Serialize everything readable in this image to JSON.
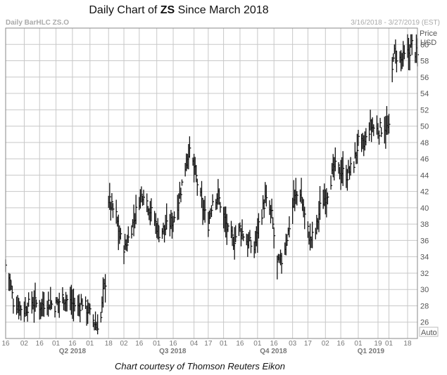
{
  "title": {
    "pre": "Daily Chart of ",
    "ticker": "ZS",
    "post": " Since March 2018"
  },
  "subtitle_left": "Daily BarHLC ZS.O",
  "subtitle_right": "3/16/2018 - 3/27/2019 (EST)",
  "price_label": "Price",
  "currency_label": "USD",
  "auto_label": "Auto",
  "credit": "Chart courtesy of Thomson Reuters Eikon",
  "chart_data": {
    "type": "bar",
    "series_type": "daily high-low-close",
    "ylim": [
      24,
      62
    ],
    "y_ticks": [
      26,
      28,
      30,
      32,
      34,
      36,
      38,
      40,
      42,
      44,
      46,
      48,
      50,
      52,
      54,
      56,
      58,
      60
    ],
    "x_range": [
      "2018-03-16",
      "2019-03-27"
    ],
    "x_ticks": [
      {
        "label": "16",
        "date": "2018-03-16"
      },
      {
        "label": "02",
        "date": "2018-04-02"
      },
      {
        "label": "16",
        "date": "2018-04-16"
      },
      {
        "label": "01",
        "date": "2018-05-01"
      },
      {
        "label": "16",
        "date": "2018-05-16"
      },
      {
        "label": "01",
        "date": "2018-06-01"
      },
      {
        "label": "18",
        "date": "2018-06-18"
      },
      {
        "label": "02",
        "date": "2018-07-02"
      },
      {
        "label": "16",
        "date": "2018-07-16"
      },
      {
        "label": "01",
        "date": "2018-08-01"
      },
      {
        "label": "16",
        "date": "2018-08-16"
      },
      {
        "label": "04",
        "date": "2018-09-04"
      },
      {
        "label": "17",
        "date": "2018-09-17"
      },
      {
        "label": "01",
        "date": "2018-10-01"
      },
      {
        "label": "16",
        "date": "2018-10-16"
      },
      {
        "label": "01",
        "date": "2018-11-01"
      },
      {
        "label": "16",
        "date": "2018-11-16"
      },
      {
        "label": "03",
        "date": "2018-12-03"
      },
      {
        "label": "17",
        "date": "2018-12-17"
      },
      {
        "label": "02",
        "date": "2019-01-02"
      },
      {
        "label": "16",
        "date": "2019-01-16"
      },
      {
        "label": "01",
        "date": "2019-02-01"
      },
      {
        "label": "19",
        "date": "2019-02-19"
      },
      {
        "label": "01",
        "date": "2019-03-01"
      },
      {
        "label": "18",
        "date": "2019-03-18"
      }
    ],
    "quarters": [
      {
        "label": "Q2 2018",
        "start": "2018-04-01",
        "end": "2018-06-30"
      },
      {
        "label": "Q3 2018",
        "start": "2018-07-01",
        "end": "2018-09-30"
      },
      {
        "label": "Q4 2018",
        "start": "2018-10-01",
        "end": "2018-12-31"
      },
      {
        "label": "Q1 2019",
        "start": "2019-01-01",
        "end": "2019-03-31"
      }
    ],
    "grid": true,
    "price_path": [
      [
        "2018-03-16",
        33.0
      ],
      [
        "2018-03-20",
        31.0
      ],
      [
        "2018-03-23",
        28.5
      ],
      [
        "2018-03-28",
        28.0
      ],
      [
        "2018-04-02",
        27.5
      ],
      [
        "2018-04-09",
        28.5
      ],
      [
        "2018-04-16",
        28.0
      ],
      [
        "2018-04-23",
        28.5
      ],
      [
        "2018-04-30",
        28.0
      ],
      [
        "2018-05-07",
        29.0
      ],
      [
        "2018-05-14",
        28.5
      ],
      [
        "2018-05-21",
        27.8
      ],
      [
        "2018-05-25",
        28.5
      ],
      [
        "2018-06-01",
        27.0
      ],
      [
        "2018-06-07",
        25.5
      ],
      [
        "2018-06-11",
        26.5
      ],
      [
        "2018-06-13",
        29.5
      ],
      [
        "2018-06-15",
        31.0
      ],
      [
        "2018-06-18",
        41.0
      ],
      [
        "2018-06-21",
        40.0
      ],
      [
        "2018-06-25",
        39.0
      ],
      [
        "2018-06-28",
        36.5
      ],
      [
        "2018-07-03",
        35.0
      ],
      [
        "2018-07-10",
        38.0
      ],
      [
        "2018-07-16",
        41.0
      ],
      [
        "2018-07-20",
        42.0
      ],
      [
        "2018-07-25",
        40.0
      ],
      [
        "2018-07-30",
        38.5
      ],
      [
        "2018-08-03",
        37.0
      ],
      [
        "2018-08-09",
        37.5
      ],
      [
        "2018-08-16",
        38.5
      ],
      [
        "2018-08-22",
        41.5
      ],
      [
        "2018-08-27",
        45.0
      ],
      [
        "2018-08-30",
        47.0
      ],
      [
        "2018-09-04",
        45.0
      ],
      [
        "2018-09-07",
        43.0
      ],
      [
        "2018-09-12",
        40.0
      ],
      [
        "2018-09-17",
        38.0
      ],
      [
        "2018-09-21",
        41.0
      ],
      [
        "2018-09-26",
        41.5
      ],
      [
        "2018-10-01",
        39.0
      ],
      [
        "2018-10-05",
        37.0
      ],
      [
        "2018-10-10",
        36.0
      ],
      [
        "2018-10-16",
        37.5
      ],
      [
        "2018-10-22",
        36.0
      ],
      [
        "2018-10-29",
        35.0
      ],
      [
        "2018-11-02",
        38.0
      ],
      [
        "2018-11-08",
        41.0
      ],
      [
        "2018-11-14",
        39.0
      ],
      [
        "2018-11-19",
        33.0
      ],
      [
        "2018-11-23",
        33.5
      ],
      [
        "2018-11-29",
        37.0
      ],
      [
        "2018-12-04",
        41.0
      ],
      [
        "2018-12-10",
        42.0
      ],
      [
        "2018-12-14",
        39.0
      ],
      [
        "2018-12-19",
        36.0
      ],
      [
        "2018-12-24",
        37.0
      ],
      [
        "2018-12-28",
        40.0
      ],
      [
        "2019-01-04",
        42.0
      ],
      [
        "2019-01-10",
        45.0
      ],
      [
        "2019-01-16",
        44.5
      ],
      [
        "2019-01-22",
        44.0
      ],
      [
        "2019-01-28",
        45.5
      ],
      [
        "2019-02-01",
        48.0
      ],
      [
        "2019-02-06",
        47.5
      ],
      [
        "2019-02-12",
        50.0
      ],
      [
        "2019-02-19",
        49.5
      ],
      [
        "2019-02-25",
        50.0
      ],
      [
        "2019-03-01",
        49.5
      ],
      [
        "2019-03-05",
        59.0
      ],
      [
        "2019-03-12",
        58.0
      ],
      [
        "2019-03-19",
        59.0
      ],
      [
        "2019-03-22",
        60.0
      ],
      [
        "2019-03-27",
        58.5
      ]
    ]
  }
}
